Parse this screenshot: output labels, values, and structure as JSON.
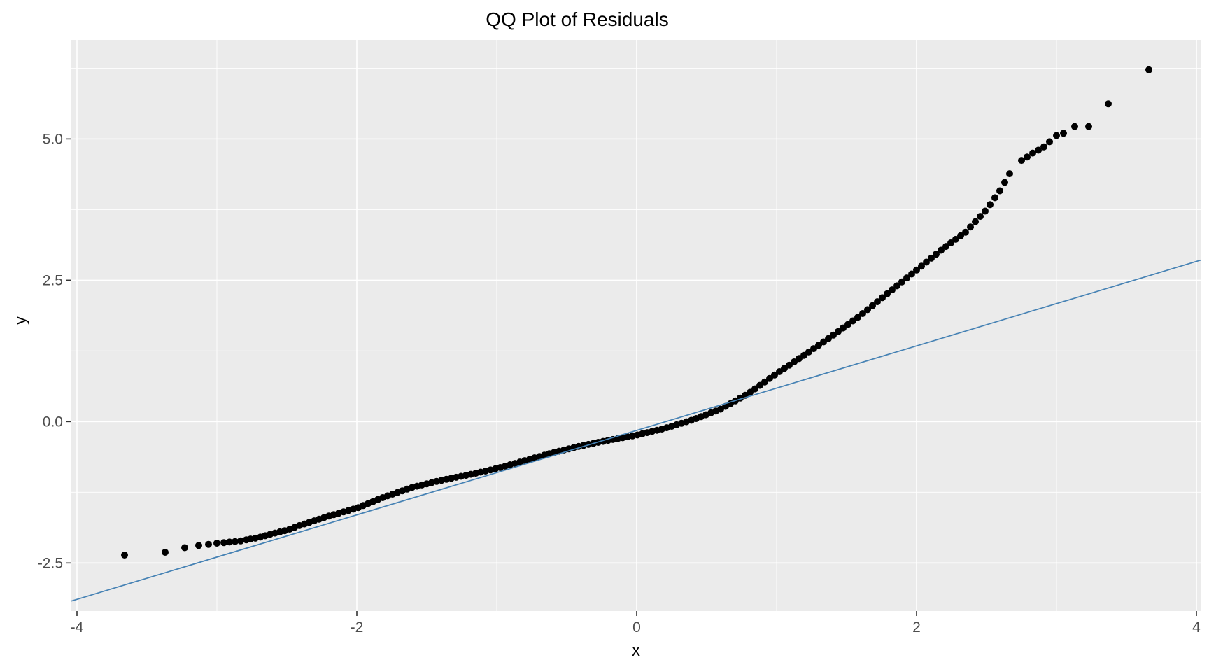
{
  "chart_data": {
    "type": "scatter",
    "title": "QQ Plot of Residuals",
    "xlabel": "x",
    "ylabel": "y",
    "xlim": [
      -4.04,
      4.03
    ],
    "ylim": [
      -3.35,
      6.75
    ],
    "x_tick_values": [
      -4,
      -2,
      0,
      2,
      4
    ],
    "x_tick_labels": [
      "-4",
      "-2",
      "0",
      "2",
      "4"
    ],
    "y_tick_values": [
      -2.5,
      0,
      2.5,
      5
    ],
    "y_tick_labels": [
      "-2.5",
      "0.0",
      "2.5",
      "5.0"
    ],
    "x_minor_gridlines": [
      -3,
      -1,
      1,
      3
    ],
    "y_minor_gridlines": [
      -1.25,
      1.25,
      3.75,
      6.25
    ],
    "grid": "on",
    "legend": "none",
    "panel_bg": "#EBEBEB",
    "grid_color": "#FFFFFF",
    "axis_text_color": "#4D4D4D",
    "tick_mark_color": "#333333",
    "point_color": "#000000",
    "point_radius": 5,
    "ref_line": {
      "intercept": -0.155,
      "slope": 0.747,
      "color": "#4682B4",
      "width": 1.7
    },
    "left_tail_points": [
      [
        -3.66,
        -2.36
      ],
      [
        -3.37,
        -2.31
      ],
      [
        -3.23,
        -2.23
      ],
      [
        -3.13,
        -2.19
      ],
      [
        -3.06,
        -2.17
      ],
      [
        -3.0,
        -2.15
      ],
      [
        -2.95,
        -2.14
      ],
      [
        -2.91,
        -2.13
      ],
      [
        -2.87,
        -2.12
      ],
      [
        -2.83,
        -2.11
      ],
      [
        -2.79,
        -2.09
      ]
    ],
    "right_tail_points": [
      [
        2.75,
        4.62
      ],
      [
        2.79,
        4.68
      ],
      [
        2.83,
        4.75
      ],
      [
        2.87,
        4.8
      ],
      [
        2.91,
        4.86
      ],
      [
        2.95,
        4.95
      ],
      [
        3.0,
        5.06
      ],
      [
        3.05,
        5.1
      ],
      [
        3.13,
        5.22
      ],
      [
        3.23,
        5.22
      ],
      [
        3.37,
        5.62
      ],
      [
        3.66,
        6.22
      ]
    ],
    "dense_band": {
      "x_start": -2.76,
      "x_end": 2.68,
      "x_step": 0.035
    },
    "curve_anchors": [
      [
        -3.66,
        -2.36
      ],
      [
        -3.37,
        -2.31
      ],
      [
        -3.23,
        -2.23
      ],
      [
        -3.13,
        -2.19
      ],
      [
        -3.06,
        -2.17
      ],
      [
        -3.0,
        -2.15
      ],
      [
        -2.9,
        -2.12
      ],
      [
        -2.79,
        -2.09
      ],
      [
        -2.7,
        -2.05
      ],
      [
        -2.6,
        -1.98
      ],
      [
        -2.5,
        -1.92
      ],
      [
        -2.4,
        -1.83
      ],
      [
        -2.2,
        -1.67
      ],
      [
        -2.0,
        -1.53
      ],
      [
        -1.8,
        -1.33
      ],
      [
        -1.6,
        -1.16
      ],
      [
        -1.4,
        -1.04
      ],
      [
        -1.2,
        -0.94
      ],
      [
        -1.0,
        -0.83
      ],
      [
        -0.8,
        -0.69
      ],
      [
        -0.6,
        -0.55
      ],
      [
        -0.4,
        -0.43
      ],
      [
        -0.2,
        -0.33
      ],
      [
        0.0,
        -0.24
      ],
      [
        0.2,
        -0.12
      ],
      [
        0.4,
        0.03
      ],
      [
        0.6,
        0.22
      ],
      [
        0.8,
        0.5
      ],
      [
        1.0,
        0.85
      ],
      [
        1.2,
        1.18
      ],
      [
        1.4,
        1.52
      ],
      [
        1.6,
        1.88
      ],
      [
        1.8,
        2.28
      ],
      [
        2.0,
        2.68
      ],
      [
        2.2,
        3.08
      ],
      [
        2.35,
        3.35
      ],
      [
        2.5,
        3.75
      ],
      [
        2.6,
        4.1
      ],
      [
        2.68,
        4.45
      ]
    ]
  }
}
